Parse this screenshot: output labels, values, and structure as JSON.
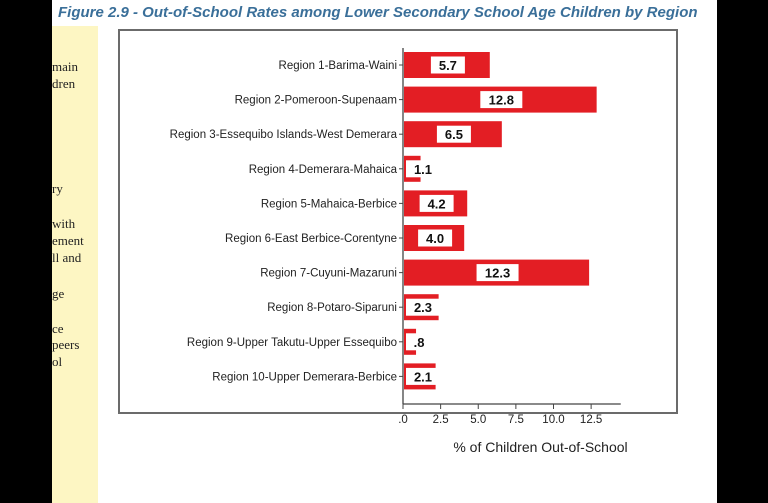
{
  "figure_title": "Figure 2.9 - Out-of-School Rates among Lower Secondary School Age Children by Region",
  "sidebar_text": [
    "main",
    "dren",
    "ry",
    "with",
    "ement",
    "ll and",
    "ge",
    "ce",
    "peers",
    "ol"
  ],
  "colors": {
    "bar": "#e31e24",
    "title": "#3a6f99",
    "sidebar_bg": "#fdf6c3"
  },
  "chart_data": {
    "type": "bar",
    "orientation": "horizontal",
    "title": "",
    "xlabel": "% of Children Out-of-School",
    "ylabel": "",
    "categories": [
      "Region 1-Barima-Waini",
      "Region 2-Pomeroon-Supenaam",
      "Region 3-Essequibo Islands-West Demerara",
      "Region 4-Demerara-Mahaica",
      "Region 5-Mahaica-Berbice",
      "Region 6-East Berbice-Corentyne",
      "Region 7-Cuyuni-Mazaruni",
      "Region 8-Potaro-Siparuni",
      "Region 9-Upper Takutu-Upper Essequibo",
      "Region 10-Upper Demerara-Berbice"
    ],
    "values": [
      5.7,
      12.8,
      6.5,
      1.1,
      4.2,
      4.0,
      12.3,
      2.3,
      0.8,
      2.1
    ],
    "value_labels": [
      "5.7",
      "12.8",
      "6.5",
      "1.1",
      "4.2",
      "4.0",
      "12.3",
      "2.3",
      ".8",
      "2.1"
    ],
    "xlim": [
      0,
      15
    ],
    "xticks": [
      0,
      2.5,
      5,
      7.5,
      10,
      12.5
    ],
    "xtick_labels": [
      ".0",
      "2.5",
      "5.0",
      "7.5",
      "10.0",
      "12.5"
    ],
    "grid": false,
    "legend": "none"
  }
}
